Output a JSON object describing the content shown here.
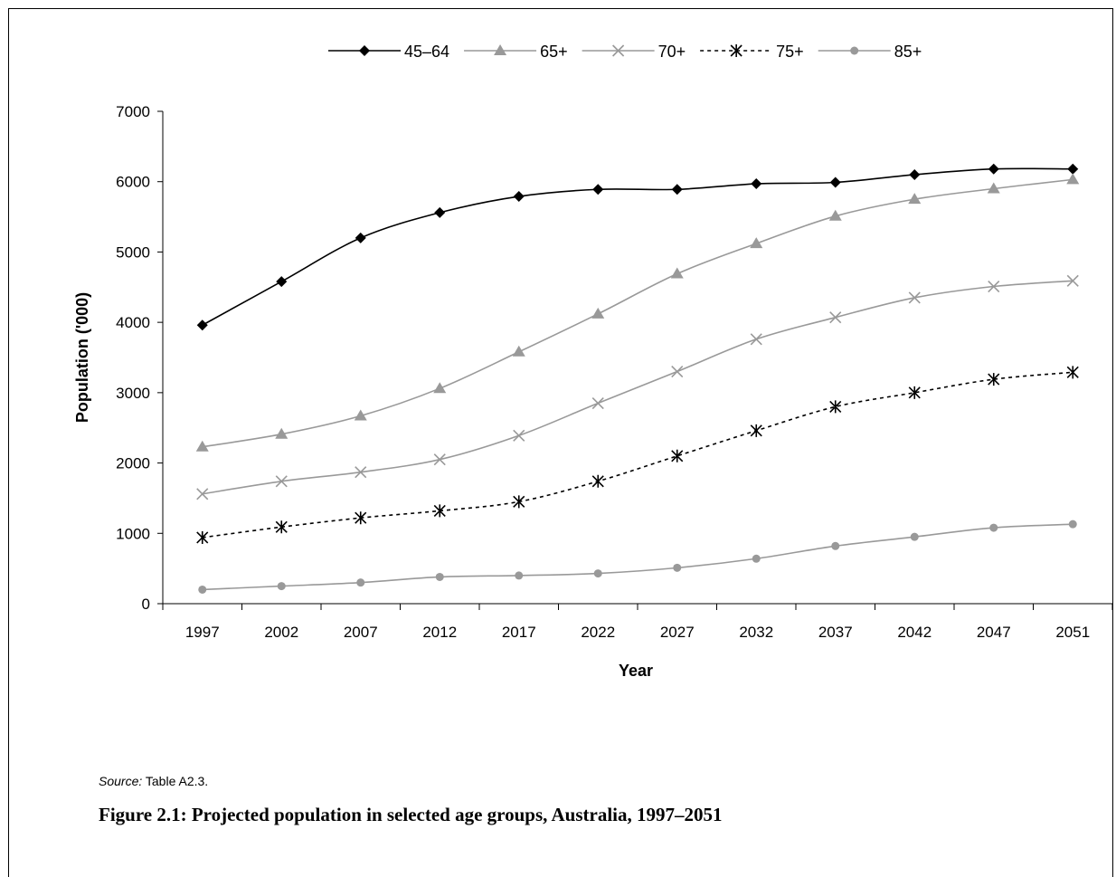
{
  "chart_data": {
    "type": "line",
    "x": [
      "1997",
      "2002",
      "2007",
      "2012",
      "2017",
      "2022",
      "2027",
      "2032",
      "2037",
      "2042",
      "2047",
      "2051"
    ],
    "series": [
      {
        "name": "45–64",
        "values": [
          3960,
          4580,
          5200,
          5560,
          5790,
          5890,
          5890,
          5970,
          5990,
          6100,
          6180,
          6180
        ],
        "color": "#000000",
        "marker": "diamond",
        "dash": ""
      },
      {
        "name": "65+",
        "values": [
          2230,
          2410,
          2670,
          3060,
          3580,
          4120,
          4690,
          5120,
          5510,
          5750,
          5900,
          6030
        ],
        "color": "#999999",
        "marker": "triangle",
        "dash": ""
      },
      {
        "name": "70+",
        "values": [
          1560,
          1740,
          1870,
          2050,
          2390,
          2850,
          3300,
          3760,
          4070,
          4350,
          4510,
          4590
        ],
        "color": "#999999",
        "marker": "x",
        "dash": ""
      },
      {
        "name": "75+",
        "values": [
          940,
          1090,
          1220,
          1320,
          1450,
          1740,
          2100,
          2460,
          2800,
          3000,
          3190,
          3290
        ],
        "color": "#000000",
        "marker": "star",
        "dash": "4,4"
      },
      {
        "name": "85+",
        "values": [
          200,
          250,
          300,
          380,
          400,
          430,
          510,
          640,
          820,
          950,
          1080,
          1130
        ],
        "color": "#999999",
        "marker": "circle",
        "dash": ""
      }
    ],
    "ylabel": "Population ('000)",
    "xlabel": "Year",
    "ylim": [
      0,
      7000
    ],
    "yticks": [
      "0",
      "1000",
      "2000",
      "3000",
      "4000",
      "5000",
      "6000",
      "7000"
    ],
    "grid": false,
    "legend_position": "top"
  },
  "source": {
    "label": "Source:",
    "text": "Table A2.3."
  },
  "caption": "Figure 2.1: Projected population in selected age groups, Australia, 1997–2051"
}
